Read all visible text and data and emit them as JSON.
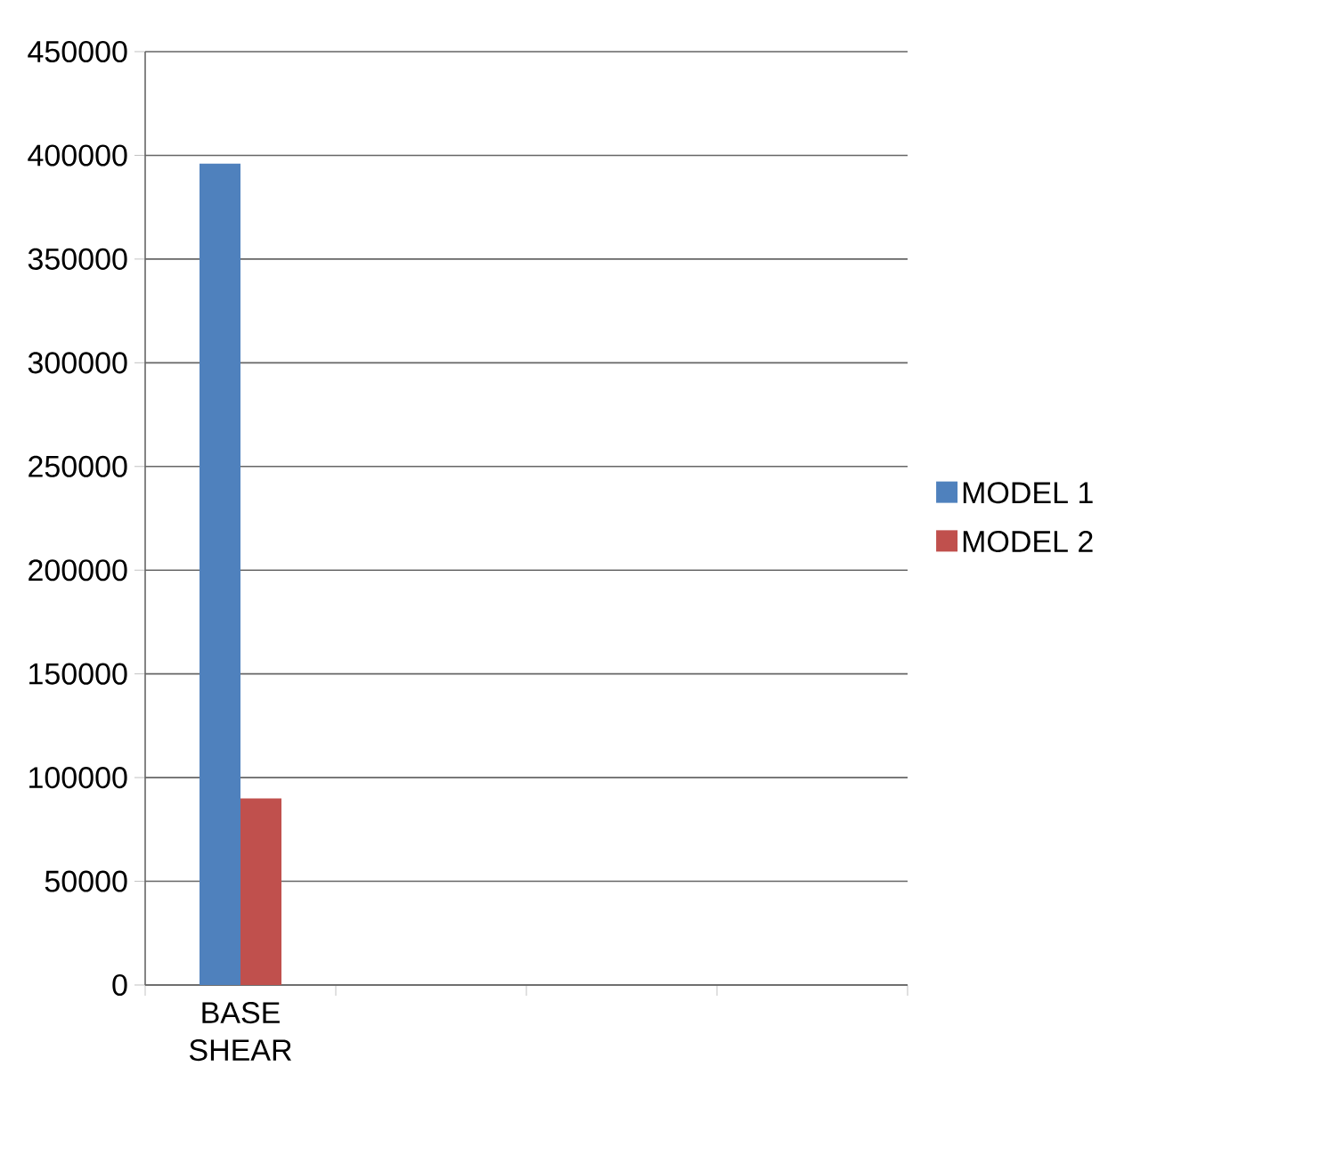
{
  "chart_data": {
    "type": "bar",
    "categories": [
      "BASE SHEAR",
      null,
      null,
      null
    ],
    "series": [
      {
        "name": "MODEL 1",
        "color": "#4f81bd",
        "values": [
          396000,
          null,
          null,
          null
        ]
      },
      {
        "name": "MODEL 2",
        "color": "#c0504d",
        "values": [
          90000,
          null,
          null,
          null
        ]
      }
    ],
    "ylim": [
      0,
      450000
    ],
    "yticks": [
      0,
      50000,
      100000,
      150000,
      200000,
      250000,
      300000,
      350000,
      400000,
      450000
    ],
    "grid": "y",
    "legend": "right"
  }
}
